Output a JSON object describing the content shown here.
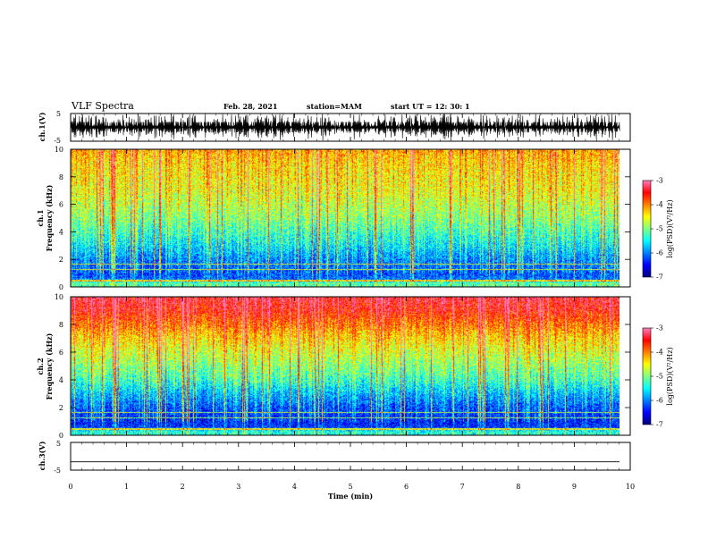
{
  "header": {
    "title": "VLF Spectra",
    "date": "Feb. 28, 2021",
    "station": "station=MAM",
    "start": "start  UT =   12: 30: 1"
  },
  "colors": {
    "cmap": [
      "#00007f",
      "#0000ff",
      "#0080ff",
      "#00ffff",
      "#80ff80",
      "#ffff00",
      "#ff8000",
      "#ff0000",
      "#ff80c0"
    ],
    "ink": "#000000",
    "background": "#ffffff"
  },
  "chart_data": [
    {
      "type": "line",
      "panel": "waveform-ch1",
      "ylabel": "ch.1(V)",
      "ylim": [
        -5,
        5
      ],
      "yticks": [
        "5",
        "-5"
      ],
      "xlim": [
        0,
        10
      ],
      "note_visual": "dense saturated waveform spikes across full time span"
    },
    {
      "type": "heatmap",
      "panel": "spectrogram-ch1",
      "ylabel_line1": "ch.1",
      "ylabel_line2": "Frequency (kHz)",
      "ylim": [
        0,
        10
      ],
      "yticks": [
        "0",
        "2",
        "4",
        "6",
        "8",
        "10"
      ],
      "xlim": [
        0,
        9.8
      ],
      "colorbar": {
        "label": "log(PSD)(V²/Hz)",
        "ticks": [
          "-3",
          "-4",
          "-5",
          "-6",
          "-7"
        ],
        "range": [
          -7,
          -3
        ]
      },
      "profile_by_freq": [
        {
          "f": 0.3,
          "logpsd": -5.2
        },
        {
          "f": 0.6,
          "logpsd": -6.1
        },
        {
          "f": 1.0,
          "logpsd": -6.2
        },
        {
          "f": 2.0,
          "logpsd": -6.0
        },
        {
          "f": 3.0,
          "logpsd": -5.6
        },
        {
          "f": 4.0,
          "logpsd": -5.3
        },
        {
          "f": 5.0,
          "logpsd": -5.0
        },
        {
          "f": 6.0,
          "logpsd": -4.8
        },
        {
          "f": 7.0,
          "logpsd": -4.6
        },
        {
          "f": 8.0,
          "logpsd": -4.5
        },
        {
          "f": 9.0,
          "logpsd": -4.4
        },
        {
          "f": 10.0,
          "logpsd": -4.2
        }
      ]
    },
    {
      "type": "heatmap",
      "panel": "spectrogram-ch2",
      "ylabel_line1": "ch.2",
      "ylabel_line2": "Frequency (kHz)",
      "ylim": [
        0,
        10
      ],
      "yticks": [
        "0",
        "2",
        "4",
        "6",
        "8",
        "10"
      ],
      "xlim": [
        0,
        9.8
      ],
      "colorbar": {
        "label": "log(PSD)(V²/Hz)",
        "ticks": [
          "-3",
          "-4",
          "-5",
          "-6",
          "-7"
        ],
        "range": [
          -7,
          -3
        ]
      },
      "profile_by_freq": [
        {
          "f": 0.3,
          "logpsd": -5.4
        },
        {
          "f": 0.6,
          "logpsd": -6.3
        },
        {
          "f": 1.0,
          "logpsd": -6.4
        },
        {
          "f": 2.0,
          "logpsd": -6.2
        },
        {
          "f": 3.0,
          "logpsd": -5.8
        },
        {
          "f": 4.0,
          "logpsd": -5.3
        },
        {
          "f": 5.0,
          "logpsd": -5.0
        },
        {
          "f": 6.0,
          "logpsd": -4.7
        },
        {
          "f": 7.0,
          "logpsd": -4.4
        },
        {
          "f": 8.0,
          "logpsd": -4.0
        },
        {
          "f": 9.0,
          "logpsd": -3.6
        },
        {
          "f": 10.0,
          "logpsd": -3.4
        }
      ]
    },
    {
      "type": "line",
      "panel": "waveform-ch3",
      "ylabel": "ch.3(V)",
      "ylim": [
        -5,
        5
      ],
      "yticks": [
        "5",
        "-5"
      ],
      "xlim": [
        0,
        10
      ],
      "constant_value": -2,
      "xlabel": "Time (min)",
      "xticks": [
        "0",
        "1",
        "2",
        "3",
        "4",
        "5",
        "6",
        "7",
        "8",
        "9",
        "10"
      ]
    }
  ]
}
